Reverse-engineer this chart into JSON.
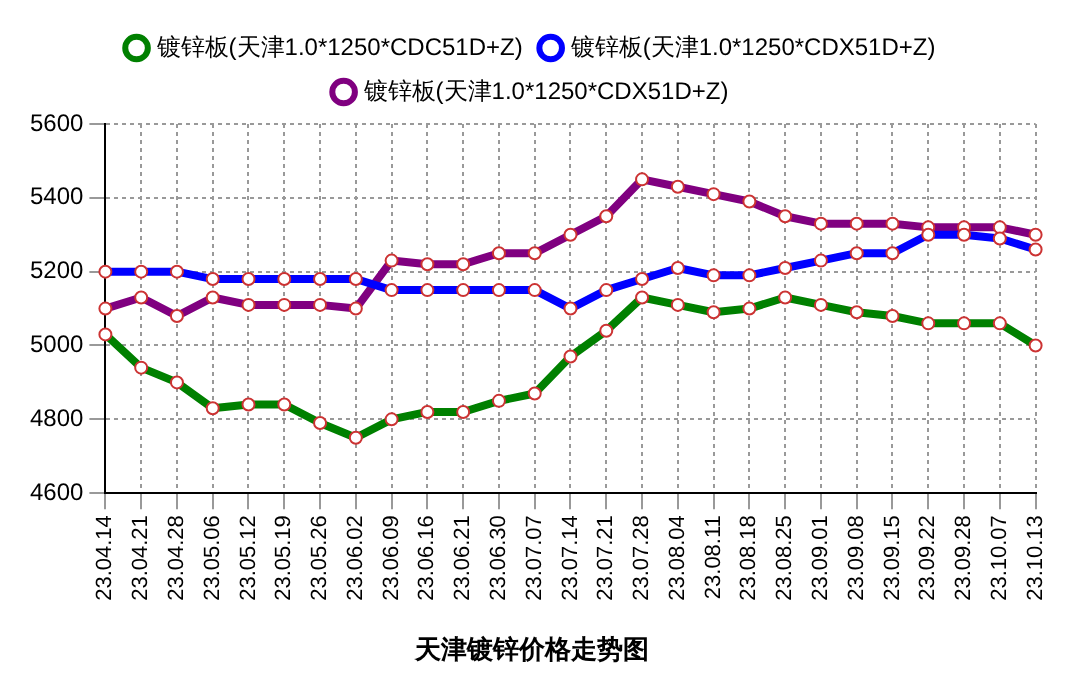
{
  "chart_data": {
    "type": "line",
    "title": "天津镀锌价格走势图",
    "categories": [
      "23.04.14",
      "23.04.21",
      "23.04.28",
      "23.05.06",
      "23.05.12",
      "23.05.19",
      "23.05.26",
      "23.06.02",
      "23.06.09",
      "23.06.16",
      "23.06.21",
      "23.06.30",
      "23.07.07",
      "23.07.14",
      "23.07.21",
      "23.07.28",
      "23.08.04",
      "23.08.11",
      "23.08.18",
      "23.08.25",
      "23.09.01",
      "23.09.08",
      "23.09.15",
      "23.09.22",
      "23.09.28",
      "23.10.07",
      "23.10.13"
    ],
    "series": [
      {
        "name": "镀锌板(天津1.0*1250*CDC51D+Z)",
        "color": "#008000",
        "values": [
          5030,
          4940,
          4900,
          4830,
          4840,
          4840,
          4790,
          4750,
          4800,
          4820,
          4820,
          4850,
          4870,
          4970,
          5040,
          5130,
          5110,
          5090,
          5100,
          5130,
          5110,
          5090,
          5080,
          5060,
          5060,
          5060,
          5000
        ]
      },
      {
        "name": "镀锌板(天津1.0*1250*CDX51D+Z)",
        "color": "#0000ff",
        "values": [
          5200,
          5200,
          5200,
          5180,
          5180,
          5180,
          5180,
          5180,
          5150,
          5150,
          5150,
          5150,
          5150,
          5100,
          5150,
          5180,
          5210,
          5190,
          5190,
          5210,
          5230,
          5250,
          5250,
          5300,
          5300,
          5290,
          5260
        ]
      },
      {
        "name": "镀锌板(天津1.0*1250*CDX51D+Z)",
        "color": "#800080",
        "values": [
          5100,
          5130,
          5080,
          5130,
          5110,
          5110,
          5110,
          5100,
          5230,
          5220,
          5220,
          5250,
          5250,
          5300,
          5350,
          5450,
          5430,
          5410,
          5390,
          5350,
          5330,
          5330,
          5330,
          5320,
          5320,
          5320,
          5300
        ]
      }
    ],
    "ylim": [
      4600,
      5600
    ],
    "yticks": [
      4600,
      4800,
      5000,
      5200,
      5400,
      5600
    ],
    "grid": true,
    "legend": "top",
    "marker": "circle",
    "line_style": "solid"
  }
}
